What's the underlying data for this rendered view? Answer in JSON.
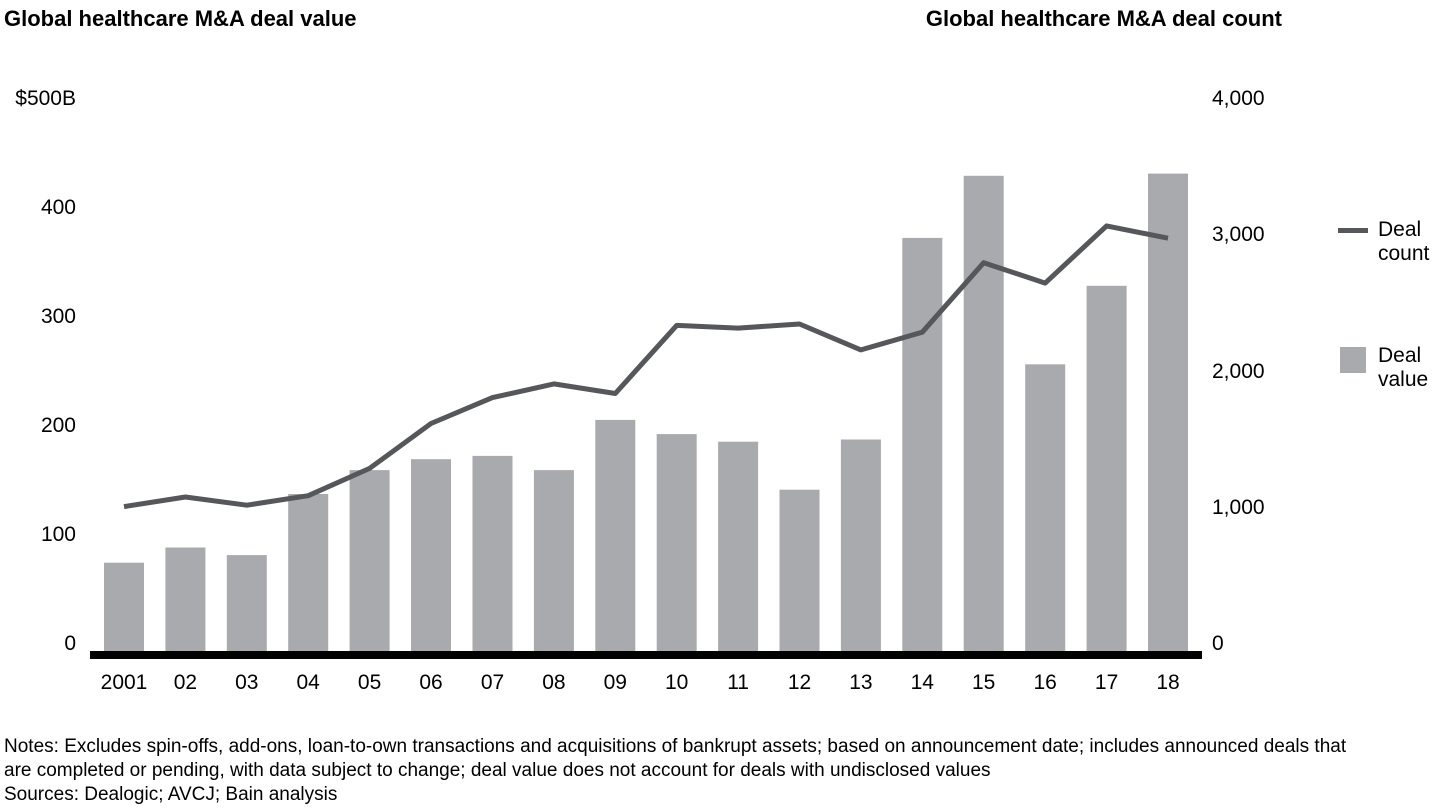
{
  "titles": {
    "left": "Global healthcare M&A deal value",
    "right": "Global healthcare M&A deal count"
  },
  "legend": {
    "count": {
      "line1": "Deal",
      "line2": "count"
    },
    "value": {
      "line1": "Deal",
      "line2": "value"
    }
  },
  "notes": {
    "line1": "Notes: Excludes spin-offs, add-ons, loan-to-own transactions and acquisitions of bankrupt assets; based on announcement date; includes announced deals that",
    "line2": "are completed or pending, with data subject to change; deal value does not account for deals with undisclosed values",
    "line3": "Sources: Dealogic; AVCJ; Bain analysis"
  },
  "colors": {
    "bar": "#a8aaad",
    "line": "#55575a",
    "axis": "#000000",
    "text": "#000000",
    "background": "#ffffff"
  },
  "chart_data": {
    "type": "bar+line combo, dual axis",
    "title_left": "Global healthcare M&A deal value",
    "title_right": "Global healthcare M&A deal count",
    "categories": [
      "2001",
      "02",
      "03",
      "04",
      "05",
      "06",
      "07",
      "08",
      "09",
      "10",
      "11",
      "12",
      "13",
      "14",
      "15",
      "16",
      "17",
      "18"
    ],
    "series": [
      {
        "name": "Deal value",
        "type": "bar",
        "axis": "left",
        "unit": "$B",
        "values": [
          81,
          95,
          88,
          144,
          166,
          176,
          179,
          166,
          212,
          199,
          192,
          148,
          194,
          379,
          436,
          263,
          335,
          438
        ]
      },
      {
        "name": "Deal count",
        "type": "line",
        "axis": "right",
        "unit": "deals",
        "values": [
          1060,
          1130,
          1070,
          1140,
          1340,
          1670,
          1860,
          1960,
          1890,
          2390,
          2370,
          2400,
          2210,
          2340,
          2850,
          2700,
          3120,
          3030
        ]
      }
    ],
    "left_axis": {
      "range": [
        0,
        500
      ],
      "ticks": [
        {
          "value": 0,
          "label": "0"
        },
        {
          "value": 100,
          "label": "100"
        },
        {
          "value": 200,
          "label": "200"
        },
        {
          "value": 300,
          "label": "300"
        },
        {
          "value": 400,
          "label": "400"
        },
        {
          "value": 500,
          "label": "$500B"
        }
      ]
    },
    "right_axis": {
      "range": [
        0,
        4000
      ],
      "ticks": [
        {
          "value": 0,
          "label": "0"
        },
        {
          "value": 1000,
          "label": "1,000"
        },
        {
          "value": 2000,
          "label": "2,000"
        },
        {
          "value": 3000,
          "label": "3,000"
        },
        {
          "value": 4000,
          "label": "4,000"
        }
      ]
    },
    "grid": false,
    "legend_position": "right"
  }
}
